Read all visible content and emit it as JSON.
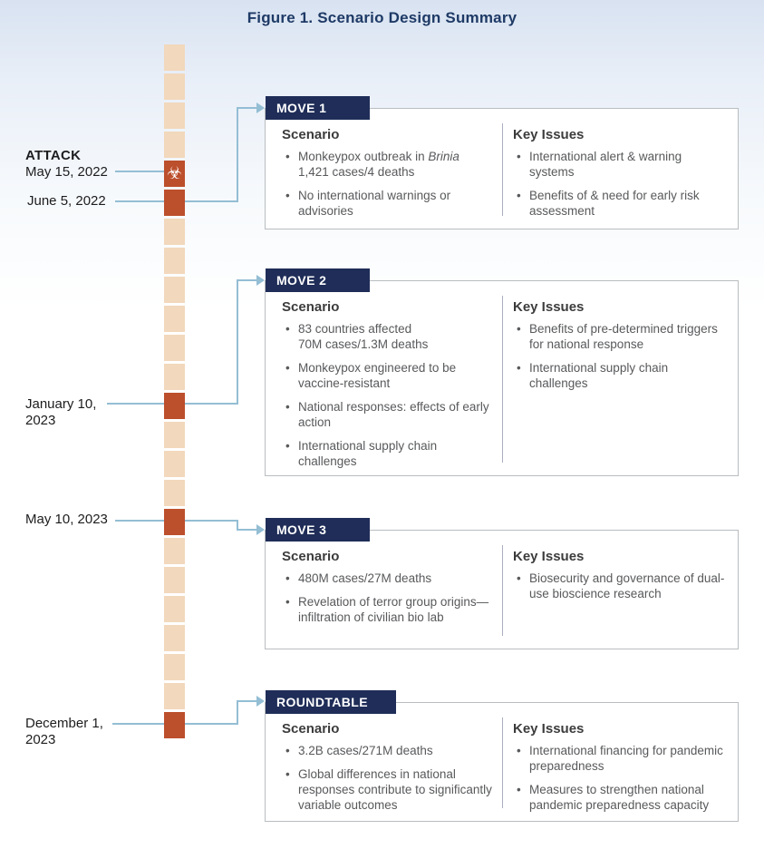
{
  "title": "Figure 1. Scenario Design Summary",
  "colors": {
    "navy": "#1f2d58",
    "orange": "#bc4f2c",
    "beige": "#f2d8bc",
    "line": "#94bed4",
    "title": "#1e3a66",
    "text": "#58595b",
    "heading": "#3c3c3c",
    "border": "#b9bdbf"
  },
  "timeline": {
    "attack_icon": "☣",
    "squares": [
      "plain",
      "plain",
      "plain",
      "plain",
      "attack",
      "milestone",
      "plain",
      "plain",
      "plain",
      "plain",
      "plain",
      "plain",
      "milestone",
      "plain",
      "plain",
      "plain",
      "milestone",
      "plain",
      "plain",
      "plain",
      "plain",
      "plain",
      "plain",
      "milestone"
    ],
    "events": [
      {
        "lines": [
          "ATTACK",
          "May 15, 2022"
        ]
      },
      {
        "lines": [
          "June 5, 2022"
        ]
      },
      {
        "lines": [
          "January 10,",
          "2023"
        ]
      },
      {
        "lines": [
          "May 10, 2023"
        ]
      },
      {
        "lines": [
          "December 1,",
          "2023"
        ]
      }
    ]
  },
  "moves": [
    {
      "header": "MOVE 1",
      "scenario_title": "Scenario",
      "key_issues_title": "Key Issues",
      "scenario": [
        [
          {
            "t": "Monkeypox outbreak in "
          },
          {
            "t": "Brinia",
            "i": true
          },
          {
            "t": "\n1,421 cases/4 deaths"
          }
        ],
        [
          {
            "t": "No international warnings or advisories"
          }
        ]
      ],
      "key_issues": [
        [
          {
            "t": "International alert & warning systems"
          }
        ],
        [
          {
            "t": "Benefits of & need for early risk assessment"
          }
        ]
      ]
    },
    {
      "header": "MOVE 2",
      "scenario_title": "Scenario",
      "key_issues_title": "Key Issues",
      "scenario": [
        [
          {
            "t": "83 countries affected\n70M cases/1.3M deaths"
          }
        ],
        [
          {
            "t": "Monkeypox engineered to be vaccine-resistant"
          }
        ],
        [
          {
            "t": "National responses: effects of early action"
          }
        ],
        [
          {
            "t": "International supply chain challenges"
          }
        ]
      ],
      "key_issues": [
        [
          {
            "t": "Benefits of pre-determined triggers for national response"
          }
        ],
        [
          {
            "t": "International supply chain challenges"
          }
        ]
      ]
    },
    {
      "header": "MOVE 3",
      "scenario_title": "Scenario",
      "key_issues_title": "Key Issues",
      "scenario": [
        [
          {
            "t": "480M cases/27M deaths"
          }
        ],
        [
          {
            "t": "Revelation of terror group origins—infiltration of civilian bio lab"
          }
        ]
      ],
      "key_issues": [
        [
          {
            "t": "Biosecurity and governance of dual-use bioscience research"
          }
        ]
      ]
    },
    {
      "header": "ROUNDTABLE",
      "scenario_title": "Scenario",
      "key_issues_title": "Key Issues",
      "scenario": [
        [
          {
            "t": "3.2B cases/271M deaths"
          }
        ],
        [
          {
            "t": "Global differences in national responses contribute to significantly variable outcomes"
          }
        ]
      ],
      "key_issues": [
        [
          {
            "t": "International financing for pandemic preparedness"
          }
        ],
        [
          {
            "t": "Measures to strengthen national pandemic preparedness capacity"
          }
        ]
      ]
    }
  ]
}
